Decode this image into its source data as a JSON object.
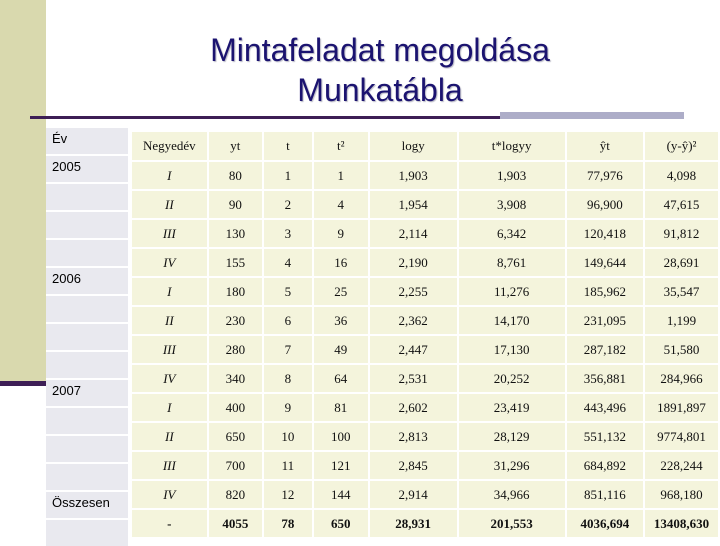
{
  "title": {
    "line1": "Mintafeladat megoldása",
    "line2": "Munkatábla"
  },
  "year_column": {
    "header": "Év",
    "cells": [
      "2005",
      "",
      "",
      "",
      "2006",
      "",
      "",
      "",
      "2007",
      "",
      "",
      "",
      "Összesen",
      ""
    ]
  },
  "table": {
    "headers": [
      "Negyedév",
      "yt",
      "t",
      "t²",
      "logy",
      "t*logyy",
      "ŷt",
      "(y-ŷ)²"
    ],
    "rows": [
      [
        "I",
        "80",
        "1",
        "1",
        "1,903",
        "1,903",
        "77,976",
        "4,098"
      ],
      [
        "II",
        "90",
        "2",
        "4",
        "1,954",
        "3,908",
        "96,900",
        "47,615"
      ],
      [
        "III",
        "130",
        "3",
        "9",
        "2,114",
        "6,342",
        "120,418",
        "91,812"
      ],
      [
        "IV",
        "155",
        "4",
        "16",
        "2,190",
        "8,761",
        "149,644",
        "28,691"
      ],
      [
        "I",
        "180",
        "5",
        "25",
        "2,255",
        "11,276",
        "185,962",
        "35,547"
      ],
      [
        "II",
        "230",
        "6",
        "36",
        "2,362",
        "14,170",
        "231,095",
        "1,199"
      ],
      [
        "III",
        "280",
        "7",
        "49",
        "2,447",
        "17,130",
        "287,182",
        "51,580"
      ],
      [
        "IV",
        "340",
        "8",
        "64",
        "2,531",
        "20,252",
        "356,881",
        "284,966"
      ],
      [
        "I",
        "400",
        "9",
        "81",
        "2,602",
        "23,419",
        "443,496",
        "1891,897"
      ],
      [
        "II",
        "650",
        "10",
        "100",
        "2,813",
        "28,129",
        "551,132",
        "9774,801"
      ],
      [
        "III",
        "700",
        "11",
        "121",
        "2,845",
        "31,296",
        "684,892",
        "228,244"
      ],
      [
        "IV",
        "820",
        "12",
        "144",
        "2,914",
        "34,966",
        "851,116",
        "968,180"
      ]
    ],
    "total": [
      "-",
      "4055",
      "78",
      "650",
      "28,931",
      "201,553",
      "4036,694",
      "13408,630"
    ]
  },
  "colors": {
    "title": "#1b1370",
    "cell_background": "#f4f4dc",
    "year_cell_background": "#e9e9ef",
    "accent_bar": "#d9d9ae",
    "rule_dark": "#3d1e55",
    "rule_light": "#adadc8"
  }
}
